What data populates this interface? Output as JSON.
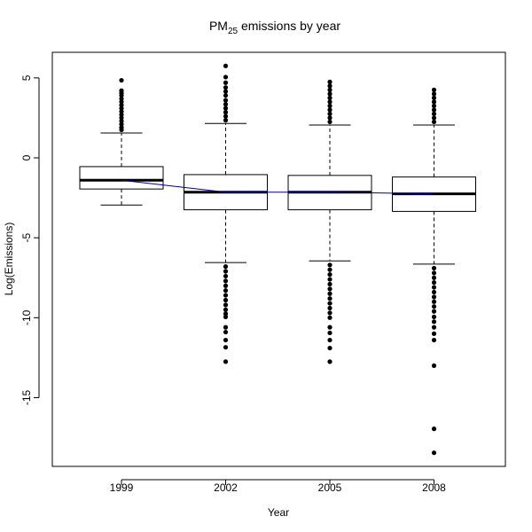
{
  "chart_data": {
    "type": "box",
    "title": "PM",
    "title_sub": "25",
    "title_rest": " emissions by year",
    "xlabel": "Year",
    "ylabel": "Log(Emissions)",
    "ylim": [
      -19.3,
      6.6
    ],
    "yticks": [
      5,
      0,
      -5,
      -10,
      -15
    ],
    "ytick_labels": [
      "5",
      "0",
      "-5",
      "-10",
      "-15"
    ],
    "categories": [
      "1999",
      "2002",
      "2005",
      "2008"
    ],
    "boxes": [
      {
        "category": "1999",
        "whisker_low": -2.95,
        "q1": -1.95,
        "median": -1.4,
        "q3": -0.55,
        "whisker_high": 1.55,
        "outliers_high": [
          1.75,
          1.9,
          2.1,
          2.3,
          2.5,
          2.7,
          2.9,
          3.1,
          3.3,
          3.5,
          3.7,
          3.9,
          4.05,
          4.2,
          4.85
        ],
        "outliers_low": []
      },
      {
        "category": "2002",
        "whisker_low": -6.55,
        "q1": -3.25,
        "median": -2.15,
        "q3": -1.05,
        "whisker_high": 2.15,
        "outliers_high": [
          2.35,
          2.6,
          2.85,
          3.1,
          3.35,
          3.6,
          3.9,
          4.15,
          4.4,
          4.7,
          5.05,
          5.75
        ],
        "outliers_low": [
          -6.8,
          -7.1,
          -7.4,
          -7.7,
          -8.0,
          -8.3,
          -8.6,
          -8.9,
          -9.2,
          -9.5,
          -9.75,
          -9.95,
          -10.6,
          -10.9,
          -11.4,
          -11.85,
          -12.75
        ]
      },
      {
        "category": "2005",
        "whisker_low": -6.45,
        "q1": -3.25,
        "median": -2.15,
        "q3": -1.1,
        "whisker_high": 2.05,
        "outliers_high": [
          2.25,
          2.5,
          2.75,
          3.0,
          3.25,
          3.5,
          3.75,
          4.0,
          4.25,
          4.5,
          4.75
        ],
        "outliers_low": [
          -6.7,
          -7.0,
          -7.3,
          -7.6,
          -7.9,
          -8.2,
          -8.5,
          -8.8,
          -9.1,
          -9.4,
          -9.7,
          -10.0,
          -10.6,
          -10.95,
          -11.4,
          -11.9,
          -12.75
        ]
      },
      {
        "category": "2008",
        "whisker_low": -6.65,
        "q1": -3.35,
        "median": -2.25,
        "q3": -1.2,
        "whisker_high": 2.05,
        "outliers_high": [
          2.25,
          2.5,
          2.75,
          3.0,
          3.25,
          3.5,
          3.75,
          4.0,
          4.25
        ],
        "outliers_low": [
          -6.9,
          -7.2,
          -7.5,
          -7.8,
          -8.1,
          -8.4,
          -8.7,
          -9.0,
          -9.3,
          -9.6,
          -9.95,
          -10.25,
          -10.6,
          -11.0,
          -11.4,
          -13.0,
          -16.95,
          -18.45
        ]
      }
    ],
    "median_trend_color": "#00008B",
    "grid": false,
    "legend": "none"
  }
}
